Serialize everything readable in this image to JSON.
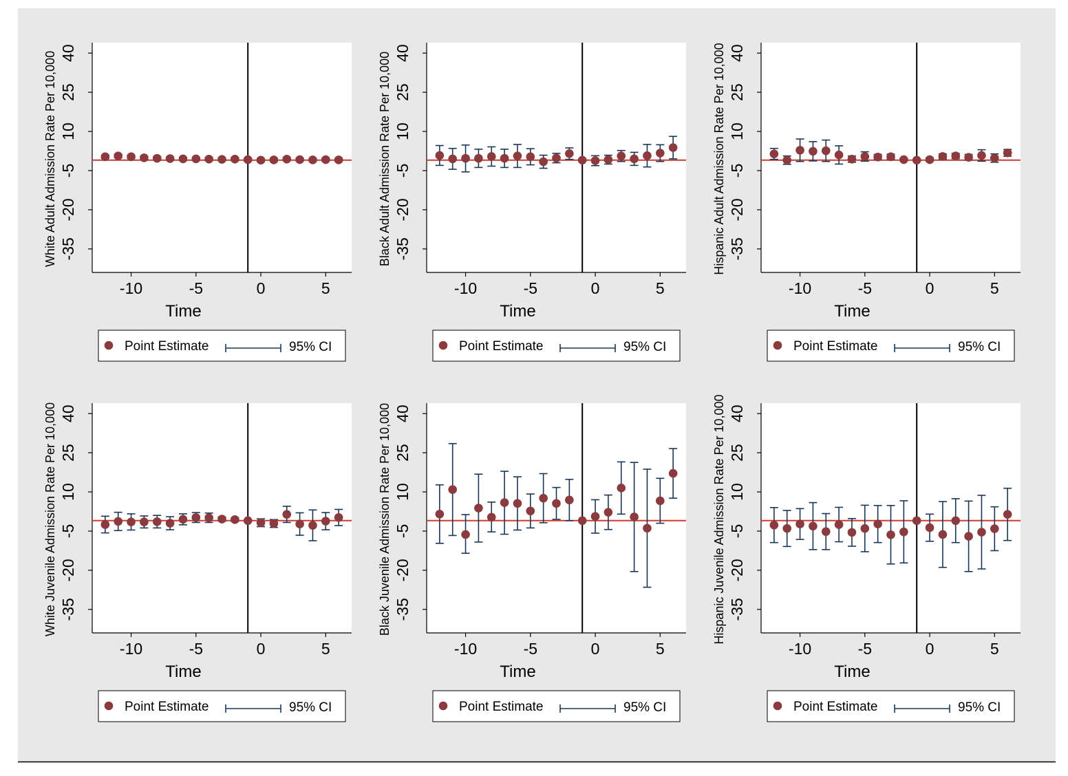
{
  "chart_data": [
    {
      "type": "scatter",
      "ylabel": "White Adult Admission Rate Per 10,000",
      "xlabel": "Time",
      "x": [
        -12,
        -11,
        -10,
        -9,
        -8,
        -7,
        -6,
        -5,
        -4,
        -3,
        -2,
        -1,
        0,
        1,
        2,
        3,
        4,
        5,
        6
      ],
      "estimate": [
        0.3,
        0.6,
        0.3,
        -0.1,
        -0.3,
        -0.4,
        -0.5,
        -0.5,
        -0.6,
        -0.7,
        -0.6,
        -0.8,
        -1.0,
        -0.9,
        -0.6,
        -0.8,
        -0.9,
        -0.8,
        -0.9
      ],
      "ci_low": [
        -0.3,
        -0.1,
        -0.3,
        -0.7,
        -0.9,
        -1.0,
        -1.1,
        -1.1,
        -1.2,
        -1.3,
        -1.2,
        -1.4,
        -1.6,
        -1.5,
        -1.2,
        -1.4,
        -1.5,
        -1.4,
        -1.5
      ],
      "ci_high": [
        0.9,
        1.3,
        0.9,
        0.5,
        0.3,
        0.2,
        0.1,
        0.1,
        0.0,
        -0.1,
        0.0,
        -0.2,
        -0.4,
        -0.3,
        0.0,
        -0.2,
        -0.3,
        -0.2,
        -0.3
      ],
      "yticks": [
        40,
        25,
        10,
        -5,
        -20,
        -35
      ],
      "xticks": [
        -10,
        -5,
        0,
        5
      ],
      "ylim": [
        -44,
        44
      ],
      "xlim": [
        -13,
        7
      ],
      "vline": -1,
      "hline": -1,
      "legend": {
        "point": "Point Estimate",
        "ci": "95% CI"
      }
    },
    {
      "type": "scatter",
      "ylabel": "Black Adult Admission Rate Per 10,000",
      "xlabel": "Time",
      "x": [
        -12,
        -11,
        -10,
        -9,
        -8,
        -7,
        -6,
        -5,
        -4,
        -3,
        -2,
        -1,
        0,
        1,
        2,
        3,
        4,
        5,
        6
      ],
      "estimate": [
        0.8,
        -0.5,
        -0.3,
        -0.3,
        0.4,
        -0.3,
        0.6,
        0.3,
        -1.6,
        -0.2,
        1.5,
        -1.0,
        -1.2,
        -0.8,
        0.6,
        -0.5,
        0.7,
        1.7,
        3.8
      ],
      "ci_low": [
        -3.0,
        -4.5,
        -5.5,
        -3.8,
        -3.3,
        -3.8,
        -3.8,
        -2.8,
        -4.1,
        -2.0,
        -0.7,
        -1.5,
        -3.1,
        -2.5,
        -1.5,
        -3.0,
        -3.6,
        -1.5,
        -0.5
      ],
      "ci_high": [
        4.6,
        3.5,
        4.8,
        3.2,
        4.1,
        3.2,
        5.0,
        3.4,
        0.9,
        1.6,
        3.7,
        -0.5,
        0.7,
        0.9,
        2.7,
        2.0,
        5.0,
        4.9,
        8.1
      ],
      "yticks": [
        40,
        25,
        10,
        -5,
        -20,
        -35
      ],
      "xticks": [
        -10,
        -5,
        0,
        5
      ],
      "ylim": [
        -44,
        44
      ],
      "xlim": [
        -13,
        7
      ],
      "vline": -1,
      "hline": -1,
      "legend": {
        "point": "Point Estimate",
        "ci": "95% CI"
      }
    },
    {
      "type": "scatter",
      "ylabel": "Hispanic Adult Admission Rate Per 10,000",
      "xlabel": "Time",
      "x": [
        -12,
        -11,
        -10,
        -9,
        -8,
        -7,
        -6,
        -5,
        -4,
        -3,
        -2,
        -1,
        0,
        1,
        2,
        3,
        4,
        5,
        6
      ],
      "estimate": [
        1.4,
        -1.0,
        2.8,
        2.4,
        2.6,
        1.0,
        -0.6,
        0.4,
        0.2,
        0.3,
        -0.8,
        -1.0,
        -0.8,
        0.4,
        0.6,
        0.1,
        0.8,
        -0.2,
        1.8
      ],
      "ci_low": [
        -0.7,
        -2.6,
        -1.5,
        -1.3,
        -1.5,
        -2.5,
        -1.8,
        -1.4,
        -0.8,
        -0.7,
        -1.3,
        -1.4,
        -1.5,
        -0.6,
        -0.4,
        -1.0,
        -1.4,
        -1.8,
        0.5
      ],
      "ci_high": [
        3.5,
        0.6,
        7.1,
        6.1,
        6.7,
        4.5,
        0.6,
        2.2,
        1.2,
        1.3,
        -0.3,
        -0.6,
        -0.1,
        1.4,
        1.6,
        1.2,
        3.0,
        1.4,
        3.1
      ],
      "yticks": [
        40,
        25,
        10,
        -5,
        -20,
        -35
      ],
      "xticks": [
        -10,
        -5,
        0,
        5
      ],
      "ylim": [
        -44,
        44
      ],
      "xlim": [
        -13,
        7
      ],
      "vline": -1,
      "hline": -1,
      "legend": {
        "point": "Point Estimate",
        "ci": "95% CI"
      }
    },
    {
      "type": "scatter",
      "ylabel": "White Juvenile Admission Rate Per 10,000",
      "xlabel": "Time",
      "x": [
        -12,
        -11,
        -10,
        -9,
        -8,
        -7,
        -6,
        -5,
        -4,
        -3,
        -2,
        -1,
        0,
        1,
        2,
        3,
        4,
        5,
        6
      ],
      "estimate": [
        -2.5,
        -1.3,
        -1.5,
        -1.5,
        -1.4,
        -2.0,
        -0.5,
        0.2,
        0.1,
        -0.4,
        -0.6,
        -1.0,
        -1.8,
        -2.1,
        1.4,
        -2.3,
        -2.8,
        -1.2,
        0.2
      ],
      "ci_low": [
        -5.7,
        -4.8,
        -4.6,
        -3.8,
        -3.8,
        -4.5,
        -2.6,
        -1.7,
        -1.7,
        -1.2,
        -1.3,
        -1.0,
        -3.3,
        -3.6,
        -1.7,
        -6.6,
        -8.7,
        -4.5,
        -2.9
      ],
      "ci_high": [
        0.7,
        2.2,
        1.6,
        0.8,
        1.0,
        0.5,
        1.6,
        2.1,
        1.9,
        0.4,
        0.1,
        -1.0,
        -0.3,
        -0.6,
        4.5,
        2.0,
        3.1,
        2.1,
        3.3
      ],
      "yticks": [
        40,
        25,
        10,
        -5,
        -20,
        -35
      ],
      "xticks": [
        -10,
        -5,
        0,
        5
      ],
      "ylim": [
        -44,
        44
      ],
      "xlim": [
        -13,
        7
      ],
      "vline": -1,
      "hline": -1,
      "legend": {
        "point": "Point Estimate",
        "ci": "95% CI"
      }
    },
    {
      "type": "scatter",
      "ylabel": "Black Juvenile Admission Rate Per 10,000",
      "xlabel": "Time",
      "x": [
        -12,
        -11,
        -10,
        -9,
        -8,
        -7,
        -6,
        -5,
        -4,
        -3,
        -2,
        -1,
        0,
        1,
        2,
        3,
        4,
        5,
        6
      ],
      "estimate": [
        1.5,
        10.9,
        -6.3,
        3.8,
        0.3,
        5.9,
        5.6,
        2.7,
        7.6,
        5.6,
        6.9,
        -1.0,
        0.6,
        2.2,
        11.5,
        0.4,
        -3.9,
        6.6,
        17.1
      ],
      "ci_low": [
        -9.7,
        -6.7,
        -13.5,
        -9.2,
        -5.3,
        -6.2,
        -4.6,
        -3.8,
        -1.8,
        -0.5,
        -1.0,
        -1.0,
        -5.8,
        -4.4,
        1.5,
        -20.5,
        -26.5,
        -2.0,
        7.6
      ],
      "ci_high": [
        12.7,
        28.5,
        1.3,
        16.8,
        6.1,
        17.9,
        15.8,
        9.2,
        17.0,
        11.7,
        14.8,
        -1.0,
        7.0,
        8.8,
        21.5,
        21.3,
        18.7,
        15.2,
        26.6
      ],
      "yticks": [
        40,
        25,
        10,
        -5,
        -20,
        -35
      ],
      "xticks": [
        -10,
        -5,
        0,
        5
      ],
      "ylim": [
        -44,
        44
      ],
      "xlim": [
        -13,
        7
      ],
      "vline": -1,
      "hline": -1,
      "legend": {
        "point": "Point Estimate",
        "ci": "95% CI"
      }
    },
    {
      "type": "scatter",
      "ylabel": "Hispanic Juvenile Admission Rate Per 10,000",
      "xlabel": "Time",
      "x": [
        -12,
        -11,
        -10,
        -9,
        -8,
        -7,
        -6,
        -5,
        -4,
        -3,
        -2,
        -1,
        0,
        1,
        2,
        3,
        4,
        5,
        6
      ],
      "estimate": [
        -2.7,
        -4.0,
        -2.3,
        -3.1,
        -5.2,
        -2.5,
        -5.5,
        -4.0,
        -2.3,
        -6.4,
        -5.3,
        -1.0,
        -3.7,
        -6.3,
        -1.0,
        -7.0,
        -5.4,
        -4.1,
        1.4
      ],
      "ci_low": [
        -9.4,
        -10.9,
        -8.2,
        -12.1,
        -12.1,
        -9.1,
        -10.8,
        -12.9,
        -9.4,
        -17.6,
        -17.2,
        -1.0,
        -8.9,
        -18.9,
        -9.4,
        -20.5,
        -19.5,
        -12.5,
        -8.6
      ],
      "ci_high": [
        4.0,
        2.9,
        3.6,
        5.9,
        1.7,
        4.1,
        -0.2,
        4.9,
        4.8,
        4.8,
        6.6,
        -1.0,
        1.5,
        6.3,
        7.4,
        6.5,
        8.7,
        4.3,
        11.4
      ],
      "yticks": [
        40,
        25,
        10,
        -5,
        -20,
        -35
      ],
      "xticks": [
        -10,
        -5,
        0,
        5
      ],
      "ylim": [
        -44,
        44
      ],
      "xlim": [
        -13,
        7
      ],
      "vline": -1,
      "hline": -1,
      "legend": {
        "point": "Point Estimate",
        "ci": "95% CI"
      }
    }
  ],
  "colors": {
    "background": "#e8e8e8",
    "plot_area": "#ffffff",
    "point": "#8b3a3e",
    "ci": "#1a3657",
    "reference_line": "#d03a2f",
    "event_line": "#000000"
  }
}
